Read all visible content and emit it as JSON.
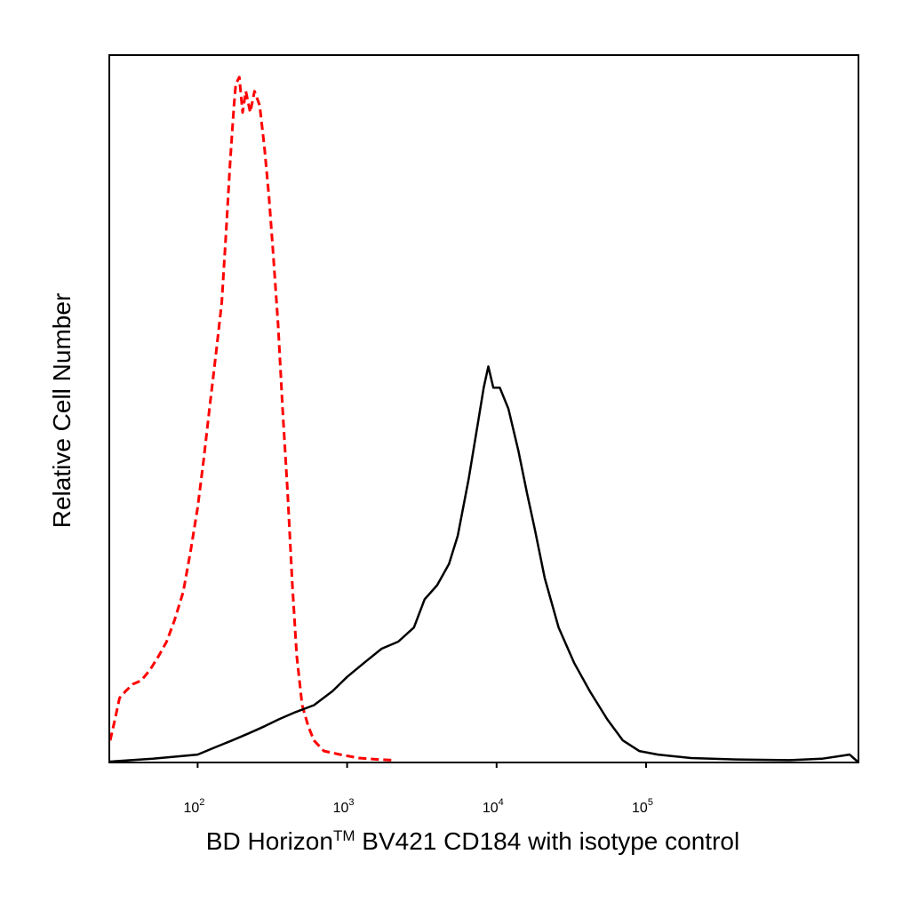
{
  "chart_data": {
    "type": "line",
    "xlabel": "BD Horizon",
    "xlabel_mark": "TM",
    "xlabel_suffix": " BV421 CD184 with isotype control",
    "ylabel": "Relative Cell Number",
    "x_scale": "log",
    "xlim": [
      26,
      2600000
    ],
    "ylim": [
      0,
      1.0
    ],
    "x_ticks": [
      {
        "value": 100,
        "base": "10",
        "exp": "2"
      },
      {
        "value": 1000,
        "base": "10",
        "exp": "3"
      },
      {
        "value": 10000,
        "base": "10",
        "exp": "4"
      },
      {
        "value": 100000,
        "base": "10",
        "exp": "5"
      }
    ],
    "grid": false,
    "legend": "none",
    "series": [
      {
        "style": "dashed",
        "color": "#ff0000",
        "points": [
          [
            26,
            0.03
          ],
          [
            28,
            0.06
          ],
          [
            30,
            0.09
          ],
          [
            33,
            0.1
          ],
          [
            37,
            0.11
          ],
          [
            42,
            0.115
          ],
          [
            48,
            0.13
          ],
          [
            55,
            0.15
          ],
          [
            62,
            0.17
          ],
          [
            70,
            0.2
          ],
          [
            80,
            0.24
          ],
          [
            90,
            0.3
          ],
          [
            100,
            0.36
          ],
          [
            110,
            0.43
          ],
          [
            120,
            0.5
          ],
          [
            133,
            0.58
          ],
          [
            145,
            0.65
          ],
          [
            155,
            0.75
          ],
          [
            165,
            0.85
          ],
          [
            175,
            0.93
          ],
          [
            180,
            0.96
          ],
          [
            190,
            0.97
          ],
          [
            200,
            0.92
          ],
          [
            210,
            0.95
          ],
          [
            225,
            0.92
          ],
          [
            240,
            0.95
          ],
          [
            260,
            0.93
          ],
          [
            280,
            0.87
          ],
          [
            300,
            0.8
          ],
          [
            320,
            0.72
          ],
          [
            345,
            0.62
          ],
          [
            370,
            0.5
          ],
          [
            400,
            0.38
          ],
          [
            430,
            0.25
          ],
          [
            460,
            0.15
          ],
          [
            500,
            0.08
          ],
          [
            550,
            0.05
          ],
          [
            600,
            0.03
          ],
          [
            700,
            0.015
          ],
          [
            900,
            0.01
          ],
          [
            1200,
            0.005
          ],
          [
            1600,
            0.003
          ],
          [
            2000,
            0.002
          ]
        ]
      },
      {
        "style": "solid",
        "color": "#000000",
        "points": [
          [
            26,
            0.0
          ],
          [
            50,
            0.004
          ],
          [
            80,
            0.008
          ],
          [
            100,
            0.01
          ],
          [
            130,
            0.02
          ],
          [
            170,
            0.03
          ],
          [
            220,
            0.04
          ],
          [
            280,
            0.05
          ],
          [
            350,
            0.06
          ],
          [
            450,
            0.07
          ],
          [
            600,
            0.08
          ],
          [
            800,
            0.1
          ],
          [
            1000,
            0.12
          ],
          [
            1300,
            0.14
          ],
          [
            1700,
            0.16
          ],
          [
            2200,
            0.17
          ],
          [
            2800,
            0.19
          ],
          [
            3300,
            0.23
          ],
          [
            4000,
            0.25
          ],
          [
            4800,
            0.28
          ],
          [
            5500,
            0.32
          ],
          [
            6500,
            0.4
          ],
          [
            7500,
            0.48
          ],
          [
            8200,
            0.53
          ],
          [
            8800,
            0.56
          ],
          [
            9500,
            0.53
          ],
          [
            10500,
            0.53
          ],
          [
            12000,
            0.5
          ],
          [
            14000,
            0.44
          ],
          [
            16000,
            0.38
          ],
          [
            18000,
            0.33
          ],
          [
            21000,
            0.26
          ],
          [
            26000,
            0.19
          ],
          [
            33000,
            0.14
          ],
          [
            42000,
            0.1
          ],
          [
            55000,
            0.06
          ],
          [
            70000,
            0.03
          ],
          [
            90000,
            0.015
          ],
          [
            120000,
            0.01
          ],
          [
            200000,
            0.005
          ],
          [
            400000,
            0.003
          ],
          [
            900000,
            0.002
          ],
          [
            1500000,
            0.004
          ],
          [
            2300000,
            0.01
          ],
          [
            2600000,
            0.0
          ]
        ]
      }
    ]
  }
}
